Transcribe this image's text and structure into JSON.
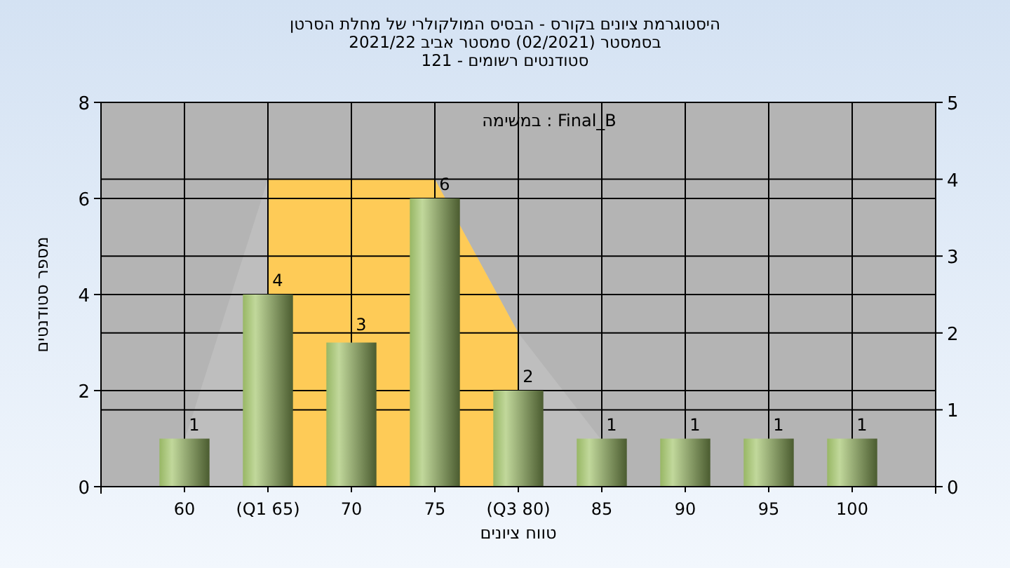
{
  "chart_data": {
    "type": "bar",
    "title": "היסטוגרמת ציונים בקורס - הבסיס המולקולרי של מחלת הסרטן",
    "subtitle": "בסמסטר  (02/2021)  סמסטר אביב 2021/22\nסטודנטים רשומים - 121",
    "xlabel": "טווח ציונים",
    "ylabel": "מספר סטודנטים",
    "categories": [
      "60",
      "(Q1 65)",
      "70",
      "75",
      "(Q3 80)",
      "85",
      "90",
      "95",
      "100"
    ],
    "series": [
      {
        "type": "area",
        "axis": "y2",
        "color": "#bebebe",
        "values": [
          0.6,
          4,
          4,
          4,
          2,
          0.6,
          null,
          null,
          null
        ]
      },
      {
        "type": "area",
        "axis": "y2",
        "color": "#fecb57",
        "values": [
          null,
          4,
          4,
          4,
          2,
          null,
          null,
          null,
          null
        ]
      },
      {
        "color": "#8fb84a",
        "values": [
          1,
          4,
          3,
          6,
          2,
          1,
          1,
          1,
          1
        ],
        "value_labels": [
          "1",
          "4",
          "3",
          "6",
          "2",
          "1",
          "1",
          "1",
          "1"
        ]
      }
    ],
    "ylim": [
      0,
      8
    ],
    "yticks": [
      0,
      2,
      4,
      6,
      8
    ],
    "y2lim": [
      0,
      5
    ],
    "y2ticks": [
      0,
      1,
      2,
      3,
      4,
      5
    ],
    "grid": true,
    "annotations": [
      "במשימה : Final_B"
    ]
  }
}
